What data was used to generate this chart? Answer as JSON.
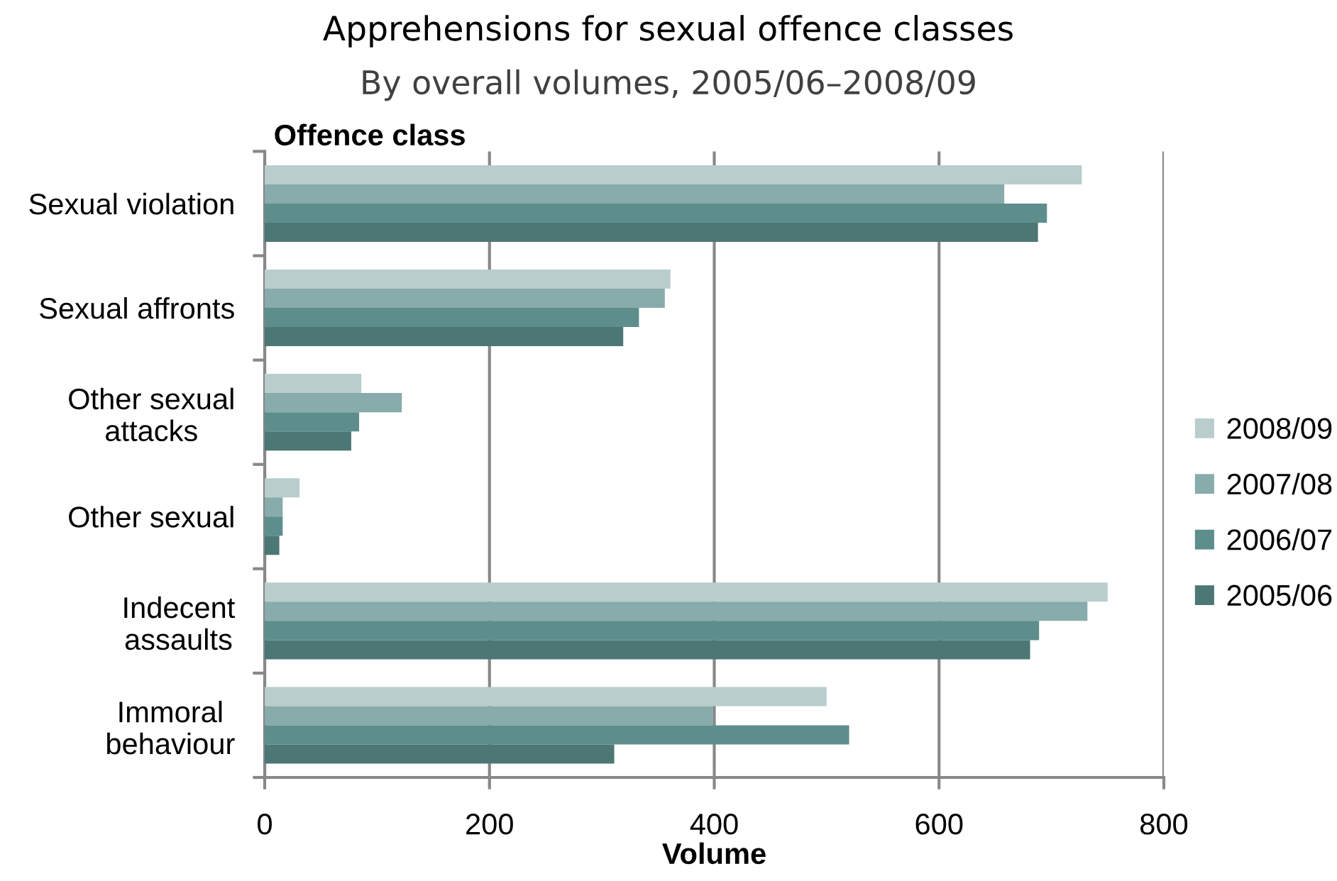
{
  "chart_data": {
    "type": "bar",
    "orientation": "horizontal",
    "title": "Apprehensions for sexual offence classes",
    "subtitle": "By overall volumes, 2005/06–2008/09",
    "xlabel": "Volume",
    "ylabel": "Offence class",
    "categories": [
      "Sexual violation",
      "Sexual affronts",
      "Other sexual\nattacks",
      "Other sexual",
      "Indecent\nassaults",
      "Immoral\nbehaviour"
    ],
    "series": [
      {
        "name": "2008/09",
        "color": "#b9cdcc",
        "values": [
          727,
          361,
          86,
          31,
          750,
          500
        ]
      },
      {
        "name": "2007/08",
        "color": "#88abab",
        "values": [
          658,
          356,
          122,
          16,
          732,
          399
        ]
      },
      {
        "name": "2006/07",
        "color": "#5d8e8c",
        "values": [
          696,
          333,
          84,
          16,
          689,
          520
        ]
      },
      {
        "name": "2005/06",
        "color": "#4d7775",
        "values": [
          688,
          319,
          77,
          13,
          681,
          311
        ]
      }
    ],
    "xlim": [
      0,
      800
    ],
    "xticks": [
      0,
      200,
      400,
      600,
      800
    ],
    "grid": "x",
    "legend": "right"
  }
}
